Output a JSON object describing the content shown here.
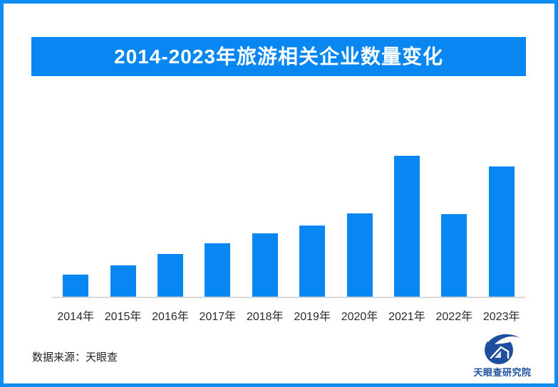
{
  "header": {
    "title": "2014-2023年旅游相关企业数量变化"
  },
  "chart_data": {
    "type": "bar",
    "title": "2014-2023年旅游相关企业数量变化",
    "categories": [
      "2014年",
      "2015年",
      "2016年",
      "2017年",
      "2018年",
      "2019年",
      "2020年",
      "2021年",
      "2022年",
      "2023年"
    ],
    "values": [
      31,
      44,
      60,
      75,
      89,
      100,
      117,
      198,
      116,
      183
    ],
    "value_unit": "relative height (no y-axis scale shown in image)",
    "xlabel": "",
    "ylabel": "",
    "legend": "none",
    "grid": false,
    "bar_color": "#0886f2",
    "axis_line_color": "#d9d9d9"
  },
  "footer": {
    "source": "数据来源：天眼查",
    "logo_text": "天眼查研究院"
  },
  "colors": {
    "accent_blue": "#0886f2",
    "frame_blue": "#0e8ef3",
    "logo_navy": "#1d4f9e",
    "axis_gray": "#d9d9d9",
    "text_dark": "#2b2b2b"
  }
}
